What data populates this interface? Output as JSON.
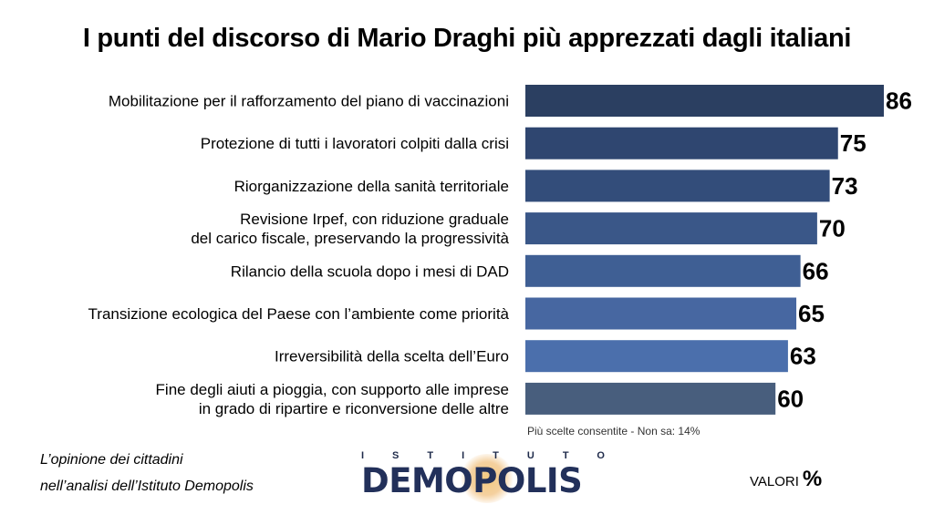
{
  "title": "I punti del discorso di Mario Draghi più apprezzati dagli italiani",
  "chart_data": {
    "type": "bar",
    "orientation": "horizontal",
    "categories": [
      [
        "Mobilitazione per il rafforzamento del piano di vaccinazioni"
      ],
      [
        "Protezione di tutti i lavoratori colpiti dalla crisi"
      ],
      [
        "Riorganizzazione della sanità territoriale"
      ],
      [
        "Revisione Irpef, con riduzione graduale",
        "del carico fiscale, preservando la progressività"
      ],
      [
        "Rilancio della scuola dopo i mesi di DAD"
      ],
      [
        "Transizione ecologica del Paese con l’ambiente come priorità"
      ],
      [
        "Irreversibilità della scelta dell’Euro"
      ],
      [
        "Fine degli aiuti a pioggia, con supporto alle imprese",
        "in grado di ripartire e riconversione delle altre"
      ]
    ],
    "values": [
      86,
      75,
      73,
      70,
      66,
      65,
      63,
      60
    ],
    "colors": [
      "#2b3f61",
      "#2f4670",
      "#334d7a",
      "#3a5788",
      "#3f5f94",
      "#4767a1",
      "#4b6fac",
      "#485e7d"
    ],
    "xlim": [
      0,
      100
    ],
    "unit": "%"
  },
  "note": "Più scelte consentite - Non sa: 14%",
  "caption": {
    "line1": "L’opinione dei cittadini",
    "line2": "nell’analisi dell’Istituto Demopolis"
  },
  "logo": {
    "top": "ISTITUTO",
    "main": "DEMOPOLIS"
  },
  "valori": {
    "label": "VALORI",
    "symbol": "%"
  }
}
